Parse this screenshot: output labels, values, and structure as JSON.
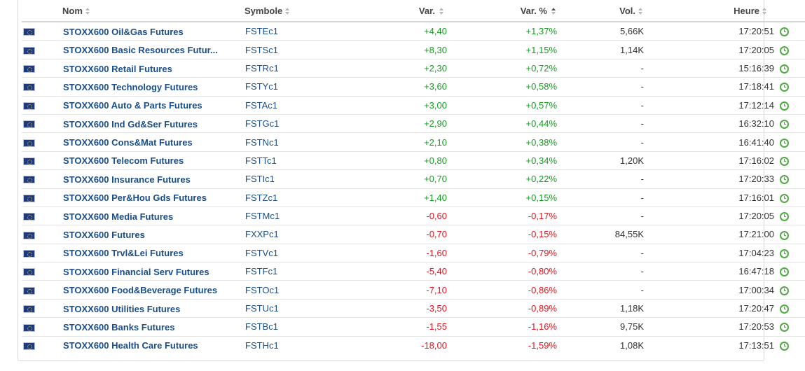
{
  "headers": {
    "name": "Nom",
    "symbol": "Symbole",
    "change": "Var.",
    "change_pct": "Var. %",
    "volume": "Vol.",
    "time": "Heure"
  },
  "sorted_column": "change_pct",
  "colors": {
    "positive": "#149c1e",
    "negative": "#e0141e",
    "link": "#1a4e8a",
    "clock": "#4dab3e"
  },
  "rows": [
    {
      "name": "STOXX600 Oil&Gas Futures",
      "symbol": "FSTEc1",
      "change": "+4,40",
      "change_pct": "+1,37%",
      "volume": "5,66K",
      "time": "17:20:51",
      "dir": "pos"
    },
    {
      "name": "STOXX600 Basic Resources Futur...",
      "symbol": "FSTSc1",
      "change": "+8,30",
      "change_pct": "+1,15%",
      "volume": "1,14K",
      "time": "17:20:05",
      "dir": "pos"
    },
    {
      "name": "STOXX600 Retail Futures",
      "symbol": "FSTRc1",
      "change": "+2,30",
      "change_pct": "+0,72%",
      "volume": "-",
      "time": "15:16:39",
      "dir": "pos"
    },
    {
      "name": "STOXX600 Technology Futures",
      "symbol": "FSTYc1",
      "change": "+3,60",
      "change_pct": "+0,58%",
      "volume": "-",
      "time": "17:18:41",
      "dir": "pos"
    },
    {
      "name": "STOXX600 Auto & Parts Futures",
      "symbol": "FSTAc1",
      "change": "+3,00",
      "change_pct": "+0,57%",
      "volume": "-",
      "time": "17:12:14",
      "dir": "pos"
    },
    {
      "name": "STOXX600 Ind Gd&Ser Futures",
      "symbol": "FSTGc1",
      "change": "+2,90",
      "change_pct": "+0,44%",
      "volume": "-",
      "time": "16:32:10",
      "dir": "pos"
    },
    {
      "name": "STOXX600 Cons&Mat Futures",
      "symbol": "FSTNc1",
      "change": "+2,10",
      "change_pct": "+0,38%",
      "volume": "-",
      "time": "16:41:40",
      "dir": "pos"
    },
    {
      "name": "STOXX600 Telecom Futures",
      "symbol": "FSTTc1",
      "change": "+0,80",
      "change_pct": "+0,34%",
      "volume": "1,20K",
      "time": "17:16:02",
      "dir": "pos"
    },
    {
      "name": "STOXX600 Insurance Futures",
      "symbol": "FSTIc1",
      "change": "+0,70",
      "change_pct": "+0,22%",
      "volume": "-",
      "time": "17:20:33",
      "dir": "pos"
    },
    {
      "name": "STOXX600 Per&Hou Gds Futures",
      "symbol": "FSTZc1",
      "change": "+1,40",
      "change_pct": "+0,15%",
      "volume": "-",
      "time": "17:16:01",
      "dir": "pos"
    },
    {
      "name": "STOXX600 Media Futures",
      "symbol": "FSTMc1",
      "change": "-0,60",
      "change_pct": "-0,17%",
      "volume": "-",
      "time": "17:20:05",
      "dir": "neg"
    },
    {
      "name": "STOXX600 Futures",
      "symbol": "FXXPc1",
      "change": "-0,70",
      "change_pct": "-0,15%",
      "volume": "84,55K",
      "time": "17:21:00",
      "dir": "neg"
    },
    {
      "name": "STOXX600 Trvl&Lei Futures",
      "symbol": "FSTVc1",
      "change": "-1,60",
      "change_pct": "-0,79%",
      "volume": "-",
      "time": "17:04:23",
      "dir": "neg"
    },
    {
      "name": "STOXX600 Financial Serv Futures",
      "symbol": "FSTFc1",
      "change": "-5,40",
      "change_pct": "-0,80%",
      "volume": "-",
      "time": "16:47:18",
      "dir": "neg"
    },
    {
      "name": "STOXX600 Food&Beverage Futures",
      "symbol": "FSTOc1",
      "change": "-7,10",
      "change_pct": "-0,86%",
      "volume": "-",
      "time": "17:00:34",
      "dir": "neg"
    },
    {
      "name": "STOXX600 Utilities Futures",
      "symbol": "FSTUc1",
      "change": "-3,50",
      "change_pct": "-0,89%",
      "volume": "1,18K",
      "time": "17:20:47",
      "dir": "neg"
    },
    {
      "name": "STOXX600 Banks Futures",
      "symbol": "FSTBc1",
      "change": "-1,55",
      "change_pct": "-1,16%",
      "volume": "9,75K",
      "time": "17:20:53",
      "dir": "neg"
    },
    {
      "name": "STOXX600 Health Care Futures",
      "symbol": "FSTHc1",
      "change": "-18,00",
      "change_pct": "-1,59%",
      "volume": "1,08K",
      "time": "17:13:51",
      "dir": "neg"
    }
  ]
}
